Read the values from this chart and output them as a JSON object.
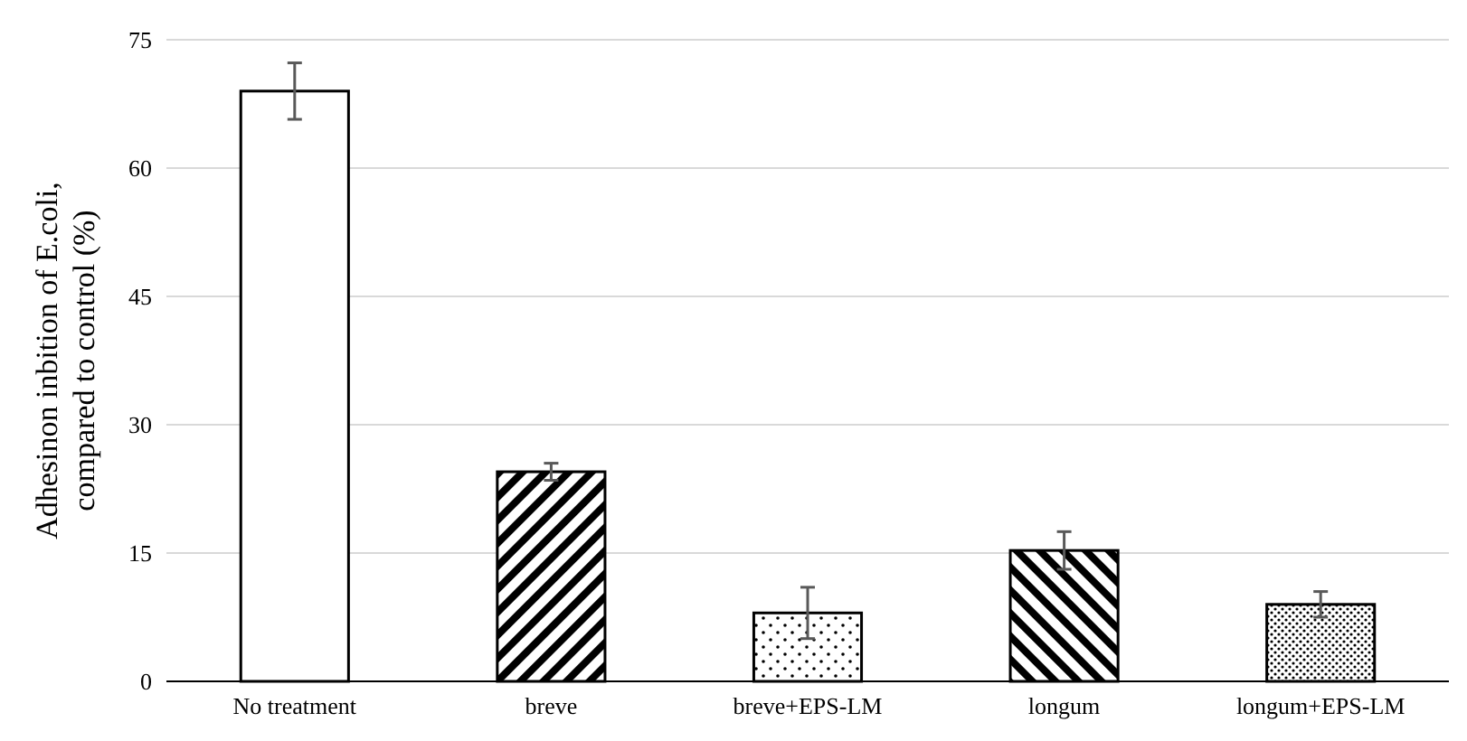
{
  "chart_data": {
    "type": "bar",
    "ylabel": "Adhesinon inbition of E.coli, compared to control (%)",
    "categories": [
      "No treatment",
      "breve",
      "breve+EPS-LM",
      "longum",
      "longum+EPS-LM"
    ],
    "values": [
      69,
      24.5,
      8,
      15.3,
      9
    ],
    "errors": [
      3.3,
      1,
      3,
      2.2,
      1.5
    ],
    "color": "#000000",
    "ylim": [
      0,
      75
    ],
    "yticks": [
      0,
      15,
      30,
      45,
      60,
      75
    ],
    "grid": "y"
  }
}
